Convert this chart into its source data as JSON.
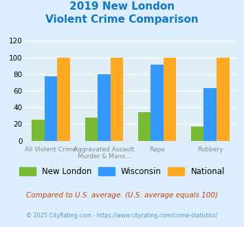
{
  "title_line1": "2019 New London",
  "title_line2": "Violent Crime Comparison",
  "new_london": [
    25,
    28,
    34,
    17
  ],
  "wisconsin": [
    77,
    80,
    91,
    63
  ],
  "national": [
    100,
    100,
    100,
    100
  ],
  "top_labels": [
    "",
    "Aggravated Assault",
    "",
    ""
  ],
  "bottom_labels": [
    "All Violent Crime",
    "Murder & Mans...",
    "Rape",
    "Robbery"
  ],
  "colors": {
    "new_london": "#77bb33",
    "wisconsin": "#3399ff",
    "national": "#ffaa22"
  },
  "ylim": [
    0,
    120
  ],
  "yticks": [
    0,
    20,
    40,
    60,
    80,
    100,
    120
  ],
  "title_color": "#1177cc",
  "subtitle_note": "Compared to U.S. average. (U.S. average equals 100)",
  "footer": "© 2025 CityRating.com - https://www.cityrating.com/crime-statistics/",
  "legend_labels": [
    "New London",
    "Wisconsin",
    "National"
  ],
  "bg_color": "#ddeeff",
  "plot_bg": "#e0eef5"
}
